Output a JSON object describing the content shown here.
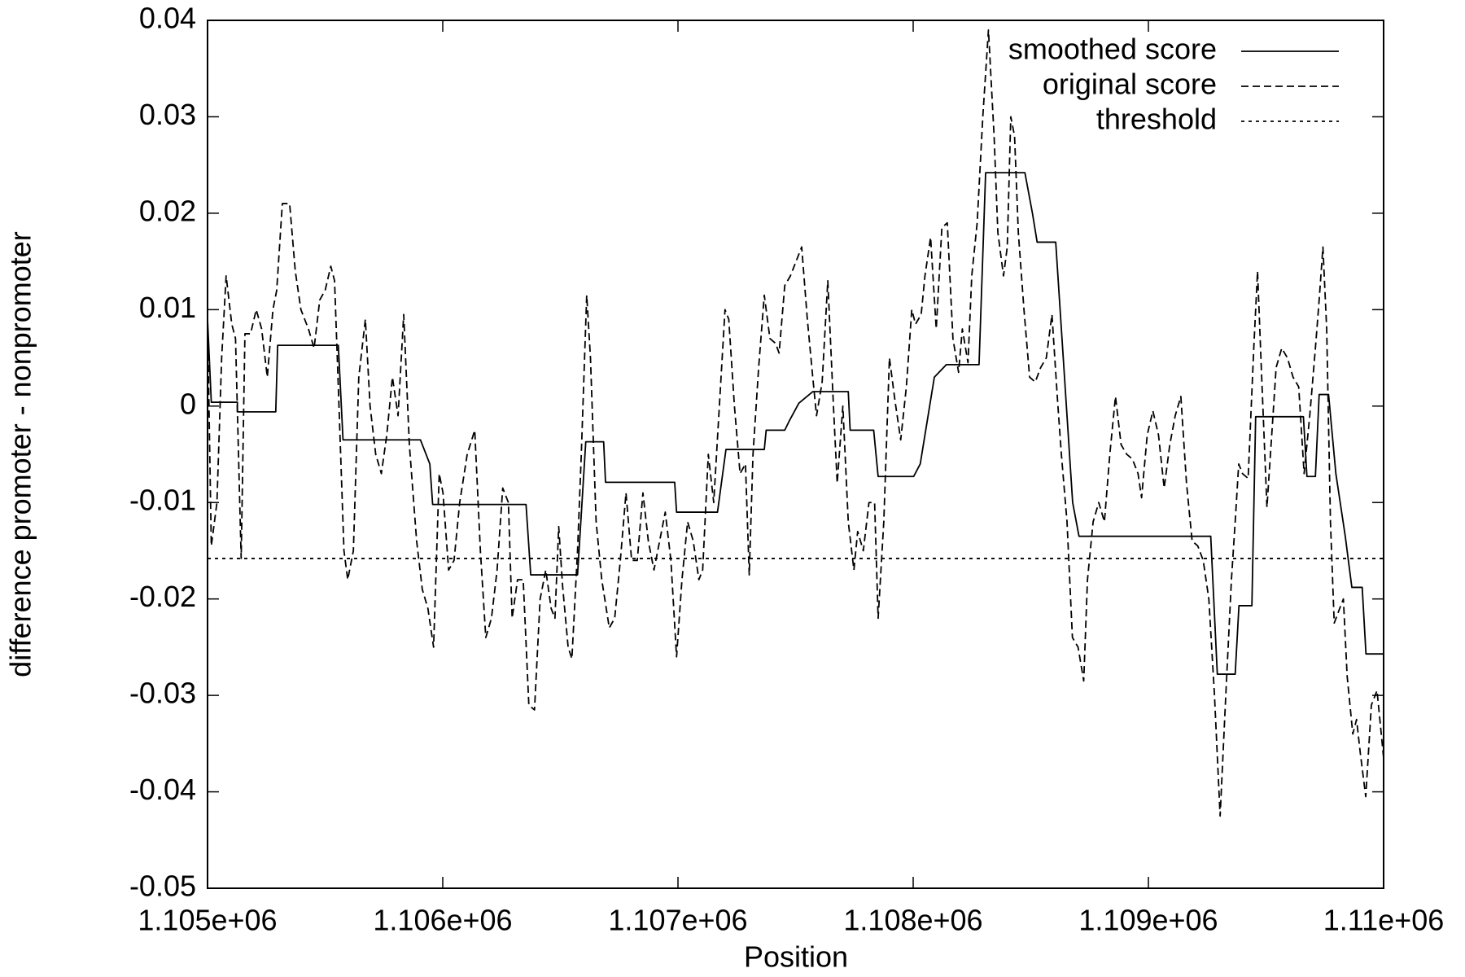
{
  "chart_data": {
    "type": "line",
    "xlabel": "Position",
    "ylabel": "difference promoter - nonpromoter",
    "xlim": [
      1105000,
      1110000
    ],
    "xticks": [
      {
        "value": 1105000,
        "label": "1.105e+06"
      },
      {
        "value": 1106000,
        "label": "1.106e+06"
      },
      {
        "value": 1107000,
        "label": "1.107e+06"
      },
      {
        "value": 1108000,
        "label": "1.108e+06"
      },
      {
        "value": 1109000,
        "label": "1.109e+06"
      },
      {
        "value": 1110000,
        "label": "1.11e+06"
      }
    ],
    "ylim": [
      -0.05,
      0.04
    ],
    "yticks": [
      -0.05,
      -0.04,
      -0.03,
      -0.02,
      -0.01,
      0,
      0.01,
      0.02,
      0.03,
      0.04
    ],
    "legend": "top-right",
    "series": [
      {
        "name": "smoothed score",
        "color": "#000000",
        "dash": "solid",
        "x": [
          1105000,
          1105016,
          1105127,
          1105127,
          1105290,
          1105298,
          1105556,
          1105576,
          1105905,
          1105945,
          1105957,
          1106354,
          1106374,
          1106573,
          1106608,
          1106684,
          1106692,
          1106986,
          1106994,
          1107168,
          1107204,
          1107367,
          1107375,
          1107454,
          1107474,
          1107514,
          1107573,
          1107724,
          1107732,
          1107832,
          1107851,
          1108002,
          1108030,
          1108050,
          1108090,
          1108141,
          1108280,
          1108308,
          1108475,
          1108507,
          1108527,
          1108606,
          1108678,
          1108705,
          1109265,
          1109293,
          1109369,
          1109385,
          1109440,
          1109456,
          1109659,
          1109674,
          1109710,
          1109726,
          1109766,
          1109797,
          1109837,
          1109865,
          1109909,
          1109925,
          1110000
        ],
        "values": [
          0.009,
          0.0004,
          0.0004,
          -0.0006,
          -0.0006,
          0.0063,
          0.0063,
          -0.0035,
          -0.0035,
          -0.006,
          -0.0102,
          -0.0102,
          -0.0175,
          -0.0175,
          -0.0037,
          -0.0037,
          -0.0079,
          -0.0079,
          -0.011,
          -0.011,
          -0.0045,
          -0.0045,
          -0.0025,
          -0.0025,
          -0.0015,
          0.0003,
          0.0015,
          0.0015,
          -0.0025,
          -0.0025,
          -0.0073,
          -0.0073,
          -0.006,
          -0.003,
          0.003,
          0.0043,
          0.0043,
          0.0242,
          0.0242,
          0.02,
          0.017,
          0.017,
          -0.01,
          -0.0135,
          -0.0135,
          -0.0278,
          -0.0278,
          -0.0207,
          -0.0207,
          -0.0011,
          -0.0011,
          -0.0073,
          -0.0073,
          0.0012,
          0.0012,
          -0.007,
          -0.0135,
          -0.0188,
          -0.0188,
          -0.0257,
          -0.0257
        ]
      },
      {
        "name": "original score",
        "color": "#000000",
        "dash": "dashed",
        "x": [
          1105000,
          1105016,
          1105040,
          1105060,
          1105079,
          1105103,
          1105119,
          1105143,
          1105159,
          1105183,
          1105207,
          1105230,
          1105254,
          1105278,
          1105294,
          1105318,
          1105349,
          1105373,
          1105397,
          1105429,
          1105453,
          1105477,
          1105500,
          1105524,
          1105540,
          1105556,
          1105580,
          1105596,
          1105620,
          1105643,
          1105671,
          1105691,
          1105715,
          1105739,
          1105762,
          1105786,
          1105810,
          1105834,
          1105858,
          1105889,
          1105913,
          1105937,
          1105961,
          1105985,
          1106001,
          1106025,
          1106048,
          1106072,
          1106104,
          1106136,
          1106160,
          1106183,
          1106207,
          1106231,
          1106255,
          1106279,
          1106295,
          1106318,
          1106342,
          1106366,
          1106390,
          1106414,
          1106438,
          1106461,
          1106477,
          1106493,
          1106509,
          1106533,
          1106549,
          1106573,
          1106589,
          1106612,
          1106628,
          1106652,
          1106676,
          1106708,
          1106731,
          1106755,
          1106779,
          1106803,
          1106827,
          1106851,
          1106874,
          1106898,
          1106922,
          1106946,
          1106970,
          1106994,
          1107017,
          1107041,
          1107065,
          1107089,
          1107105,
          1107129,
          1107152,
          1107176,
          1107200,
          1107216,
          1107240,
          1107264,
          1107287,
          1107303,
          1107319,
          1107343,
          1107367,
          1107391,
          1107415,
          1107430,
          1107454,
          1107478,
          1107502,
          1107526,
          1107550,
          1107573,
          1107589,
          1107613,
          1107637,
          1107661,
          1107677,
          1107701,
          1107724,
          1107748,
          1107764,
          1107788,
          1107812,
          1107836,
          1107851,
          1107875,
          1107899,
          1107923,
          1107947,
          1107971,
          1107994,
          1108010,
          1108034,
          1108050,
          1108074,
          1108098,
          1108122,
          1108145,
          1108169,
          1108193,
          1108209,
          1108233,
          1108249,
          1108272,
          1108296,
          1108320,
          1108344,
          1108360,
          1108384,
          1108400,
          1108415,
          1108431,
          1108447,
          1108471,
          1108495,
          1108519,
          1108542,
          1108566,
          1108590,
          1108614,
          1108630,
          1108654,
          1108677,
          1108701,
          1108725,
          1108741,
          1108765,
          1108789,
          1108813,
          1108836,
          1108860,
          1108884,
          1108908,
          1108932,
          1108956,
          1108971,
          1108995,
          1109019,
          1109043,
          1109067,
          1109091,
          1109114,
          1109138,
          1109162,
          1109186,
          1109210,
          1109233,
          1109257,
          1109281,
          1109305,
          1109329,
          1109353,
          1109369,
          1109384,
          1109400,
          1109424,
          1109448,
          1109464,
          1109480,
          1109504,
          1109527,
          1109543,
          1109567,
          1109591,
          1109615,
          1109639,
          1109662,
          1109686,
          1109710,
          1109726,
          1109742,
          1109758,
          1109774,
          1109790,
          1109813,
          1109829,
          1109845,
          1109869,
          1109885,
          1109901,
          1109924,
          1109948,
          1109972,
          1110000
        ],
        "values": [
          0.009,
          -0.0145,
          -0.01,
          0.005,
          0.0135,
          0.0085,
          0.007,
          -0.0158,
          0.0075,
          0.0075,
          0.01,
          0.008,
          0.003,
          0.01,
          0.012,
          0.021,
          0.021,
          0.014,
          0.01,
          0.008,
          0.006,
          0.011,
          0.012,
          0.0145,
          0.013,
          0.002,
          -0.015,
          -0.018,
          -0.015,
          0.003,
          0.009,
          0.0,
          -0.005,
          -0.007,
          -0.003,
          0.003,
          -0.001,
          0.0095,
          -0.004,
          -0.014,
          -0.019,
          -0.021,
          -0.025,
          -0.007,
          -0.009,
          -0.017,
          -0.016,
          -0.01,
          -0.005,
          -0.0025,
          -0.015,
          -0.024,
          -0.022,
          -0.017,
          -0.0085,
          -0.01,
          -0.022,
          -0.018,
          -0.018,
          -0.031,
          -0.0315,
          -0.02,
          -0.017,
          -0.021,
          -0.022,
          -0.0125,
          -0.0185,
          -0.025,
          -0.0262,
          -0.015,
          -0.005,
          0.0115,
          0.005,
          -0.012,
          -0.018,
          -0.023,
          -0.022,
          -0.016,
          -0.009,
          -0.016,
          -0.016,
          -0.009,
          -0.014,
          -0.017,
          -0.014,
          -0.011,
          -0.016,
          -0.026,
          -0.018,
          -0.012,
          -0.014,
          -0.018,
          -0.017,
          -0.005,
          -0.01,
          0.0,
          0.01,
          0.009,
          0.0,
          -0.007,
          -0.006,
          -0.0175,
          -0.005,
          0.004,
          0.0115,
          0.007,
          0.0065,
          0.0055,
          0.0125,
          0.0135,
          0.015,
          0.0165,
          0.009,
          0.003,
          -0.001,
          0.0025,
          0.013,
          0.0,
          -0.008,
          0.0,
          -0.012,
          -0.017,
          -0.013,
          -0.015,
          -0.01,
          -0.01,
          -0.022,
          -0.012,
          0.005,
          0.0005,
          -0.0035,
          0.002,
          0.01,
          0.0085,
          0.0095,
          0.0135,
          0.0175,
          0.008,
          0.0185,
          0.019,
          0.007,
          0.0035,
          0.008,
          0.0045,
          0.0135,
          0.019,
          0.03,
          0.039,
          0.028,
          0.018,
          0.0135,
          0.0165,
          0.03,
          0.028,
          0.018,
          0.01,
          0.003,
          0.0025,
          0.004,
          0.005,
          0.0095,
          0.0005,
          -0.005,
          -0.012,
          -0.024,
          -0.025,
          -0.0285,
          -0.018,
          -0.012,
          -0.01,
          -0.012,
          -0.005,
          0.001,
          -0.004,
          -0.005,
          -0.0055,
          -0.007,
          -0.0095,
          -0.003,
          -0.0005,
          -0.003,
          -0.0085,
          -0.004,
          -0.001,
          0.001,
          -0.008,
          -0.014,
          -0.0145,
          -0.016,
          -0.02,
          -0.03,
          -0.0425,
          -0.03,
          -0.018,
          -0.012,
          -0.006,
          -0.007,
          -0.0075,
          0.006,
          0.014,
          0.004,
          -0.0105,
          -0.002,
          0.004,
          0.006,
          0.005,
          0.003,
          0.002,
          -0.007,
          -0.001,
          0.006,
          0.011,
          0.0165,
          0.008,
          -0.012,
          -0.0225,
          -0.021,
          -0.02,
          -0.028,
          -0.034,
          -0.0325,
          -0.036,
          -0.0405,
          -0.031,
          -0.0295,
          -0.0365
        ]
      },
      {
        "name": "threshold",
        "color": "#000000",
        "dash": "dotted",
        "x": [
          1105000,
          1110000
        ],
        "values": [
          -0.0158,
          -0.0158
        ]
      }
    ]
  }
}
